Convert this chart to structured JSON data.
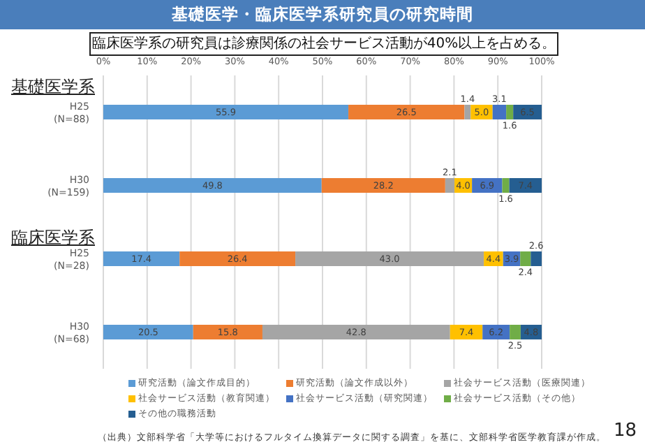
{
  "chart_data": {
    "type": "bar",
    "orientation": "horizontal",
    "stacked": true,
    "title": "基礎医学・臨床医学系研究員の研究時間",
    "subtitle": "臨床医学系の研究員は診療関係の社会サービス活動が40%以上を占める。",
    "categories": [
      "H25\n(N=88)",
      "H30\n(N=159)",
      "H25\n(N=28)",
      "H30\n(N=68)"
    ],
    "series": [
      {
        "name": "研究活動（論文作成目的）",
        "color": "#5b9bd5",
        "values": [
          55.9,
          49.8,
          17.4,
          20.5
        ],
        "value_labels": [
          "55.9",
          "49.8",
          "17.4",
          "20.5"
        ]
      },
      {
        "name": "研究活動（論文作成以外）",
        "color": "#ed7d31",
        "values": [
          26.5,
          28.2,
          26.4,
          15.8
        ],
        "value_labels": [
          "26.5",
          "28.2",
          "26.4",
          "15.8"
        ]
      },
      {
        "name": "社会サービス活動（医療関連）",
        "color": "#a5a5a5",
        "values": [
          1.4,
          2.1,
          43.0,
          42.8
        ],
        "value_labels": [
          "1.4",
          "2.1",
          "43.0",
          "42.8"
        ]
      },
      {
        "name": "社会サービス活動（教育関連）",
        "color": "#ffc000",
        "values": [
          5.0,
          4.0,
          4.4,
          7.4
        ],
        "value_labels": [
          "5.0",
          "4.0",
          "4.4",
          "7.4"
        ]
      },
      {
        "name": "社会サービス活動（研究関連）",
        "color": "#4472c4",
        "values": [
          3.1,
          6.9,
          3.9,
          6.2
        ],
        "value_labels": [
          "3.1",
          "6.9",
          "3.9",
          "6.2"
        ]
      },
      {
        "name": "社会サービス活動（その他）",
        "color": "#70ad47",
        "values": [
          1.6,
          1.6,
          2.4,
          2.5
        ],
        "value_labels": [
          "1.6",
          "1.6",
          "2.4",
          "2.5"
        ]
      },
      {
        "name": "その他の職務活動",
        "color": "#255e91",
        "values": [
          6.5,
          7.4,
          2.6,
          4.8
        ],
        "value_labels": [
          "6.5",
          "7.4",
          "2.6",
          "4.8"
        ]
      }
    ],
    "xlim": [
      0,
      100
    ],
    "xticks": [
      {
        "value": 0,
        "label": "0%"
      },
      {
        "value": 10,
        "label": "10%"
      },
      {
        "value": 20,
        "label": "20%"
      },
      {
        "value": 30,
        "label": "30%"
      },
      {
        "value": 40,
        "label": "40%"
      },
      {
        "value": 50,
        "label": "50%"
      },
      {
        "value": 60,
        "label": "60%"
      },
      {
        "value": 70,
        "label": "70%"
      },
      {
        "value": 80,
        "label": "80%"
      },
      {
        "value": 90,
        "label": "90%"
      },
      {
        "value": 100,
        "label": "100%"
      }
    ],
    "grid": "x",
    "legend": "bottom",
    "annotations": [
      "基礎医学系",
      "臨床医学系",
      "（出典）文部科学省「大学等におけるフルタイム換算データに関する調査」を基に、文部科学省医学教育課が作成。",
      "18"
    ]
  }
}
